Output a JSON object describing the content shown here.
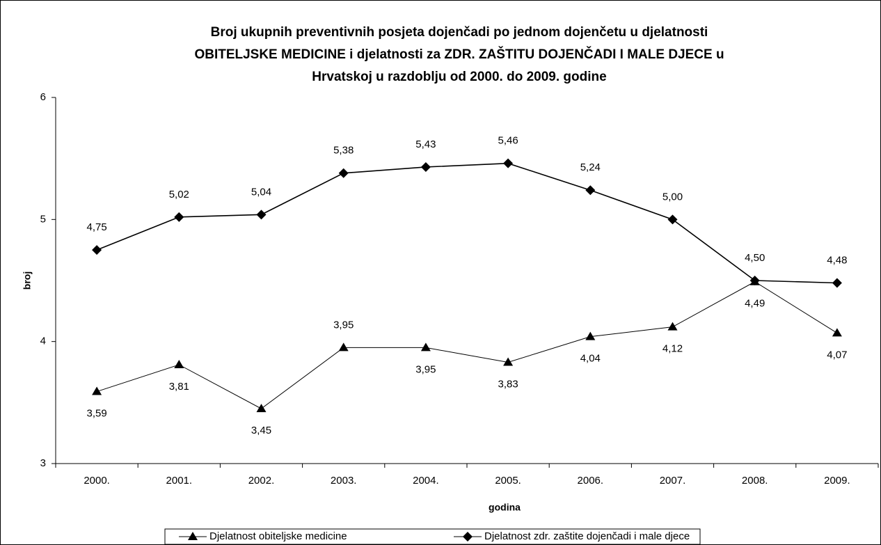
{
  "chart_data": {
    "type": "line",
    "title": [
      "Broj ukupnih preventivnih posjeta dojenčadi po jednom dojenčetu u djelatnosti",
      "OBITELJSKE MEDICINE i djelatnosti za ZDR. ZAŠTITU DOJENČADI I MALE DJECE u",
      "Hrvatskoj u razdoblju od 2000. do 2009. godine"
    ],
    "x_label": "godina",
    "y_label": "broj",
    "categories": [
      "2000.",
      "2001.",
      "2002.",
      "2003.",
      "2004.",
      "2005.",
      "2006.",
      "2007.",
      "2008.",
      "2009."
    ],
    "series": [
      {
        "name": "Djelatnost obiteljske medicine",
        "color": "#000000",
        "marker": "triangle",
        "values": [
          3.59,
          3.81,
          3.45,
          3.95,
          3.95,
          3.83,
          4.04,
          4.12,
          4.49,
          4.07
        ],
        "value_labels": [
          "3,59",
          "3,81",
          "3,45",
          "3,95",
          "3,95",
          "3,83",
          "4,04",
          "4,12",
          "4,49",
          "4,07"
        ]
      },
      {
        "name": "Djelatnost zdr. zaštite dojenčadi i male djece",
        "color": "#000000",
        "marker": "diamond",
        "values": [
          4.75,
          5.02,
          5.04,
          5.38,
          5.43,
          5.46,
          5.24,
          5.0,
          4.5,
          4.48
        ],
        "value_labels": [
          "4,75",
          "5,02",
          "5,04",
          "5,38",
          "5,43",
          "5,46",
          "5,24",
          "5,00",
          "4,50",
          "4,48"
        ]
      }
    ],
    "ylim": [
      3,
      6
    ],
    "yticks": [
      3,
      4,
      5,
      6
    ],
    "grid": false,
    "legend": "bottom"
  }
}
